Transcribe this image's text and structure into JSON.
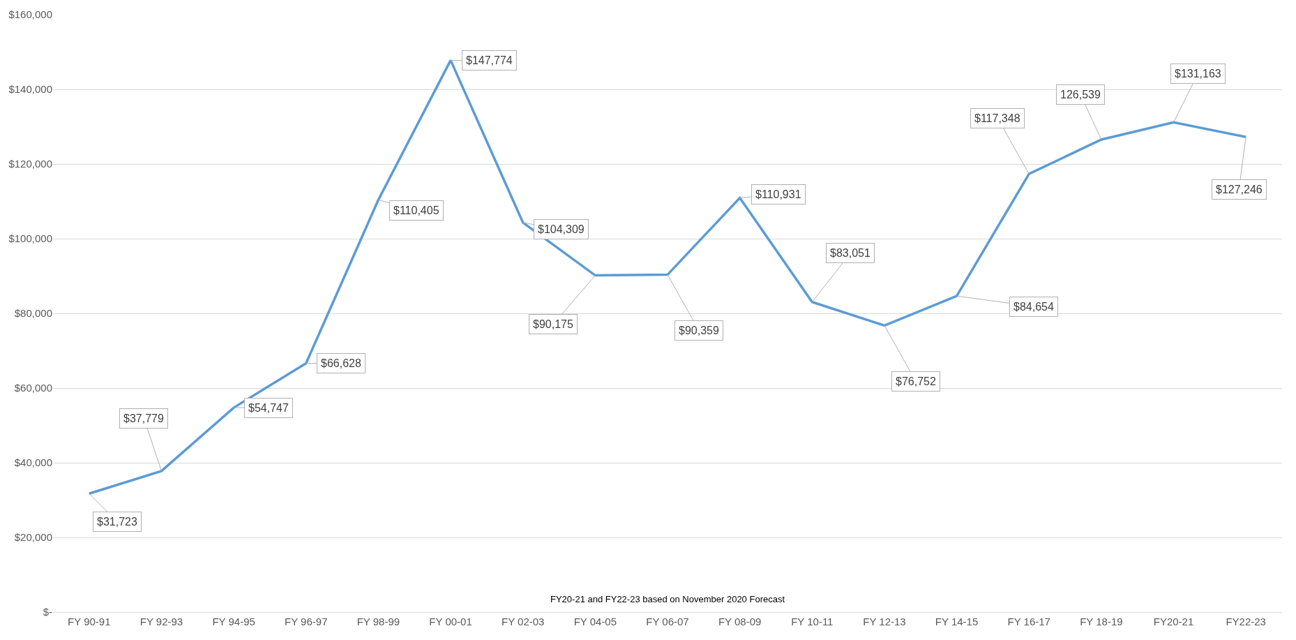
{
  "chart_data": {
    "type": "line",
    "categories": [
      "FY 90-91",
      "FY 92-93",
      "FY 94-95",
      "FY 96-97",
      "FY 98-99",
      "FY 00-01",
      "FY 02-03",
      "FY 04-05",
      "FY 06-07",
      "FY 08-09",
      "FY 10-11",
      "FY 12-13",
      "FY 14-15",
      "FY 16-17",
      "FY 18-19",
      "FY20-21",
      "FY22-23"
    ],
    "series": [
      {
        "color": "#5b9bd5",
        "values": [
          31723,
          37779,
          54747,
          66628,
          110405,
          147774,
          104309,
          90175,
          90359,
          110931,
          83051,
          76752,
          84654,
          117348,
          126539,
          131163,
          127246
        ]
      }
    ],
    "value_labels": [
      "$31,723",
      "$37,779",
      "$54,747",
      "$66,628",
      "$110,405",
      "$147,774",
      "$104,309",
      "$90,175",
      "$90,359",
      "$110,931",
      "$83,051",
      "$76,752",
      "$84,654",
      "$117,348",
      "126,539",
      "$131,163",
      "$127,246"
    ],
    "ylim": [
      0,
      160000
    ],
    "yticks": [
      {
        "value": 0,
        "label": "$-"
      },
      {
        "value": 20000,
        "label": "$20,000"
      },
      {
        "value": 40000,
        "label": "$40,000"
      },
      {
        "value": 60000,
        "label": "$60,000"
      },
      {
        "value": 80000,
        "label": "$80,000"
      },
      {
        "value": 100000,
        "label": "$100,000"
      },
      {
        "value": 120000,
        "label": "$120,000"
      },
      {
        "value": 140000,
        "label": "$140,000"
      },
      {
        "value": 160000,
        "label": "$160,000"
      }
    ],
    "grid": "y",
    "legend": false,
    "marker": "none",
    "line_style": "solid",
    "annotations": [
      "FY20-21 and FY22-23 based on November 2020 Forecast"
    ]
  }
}
